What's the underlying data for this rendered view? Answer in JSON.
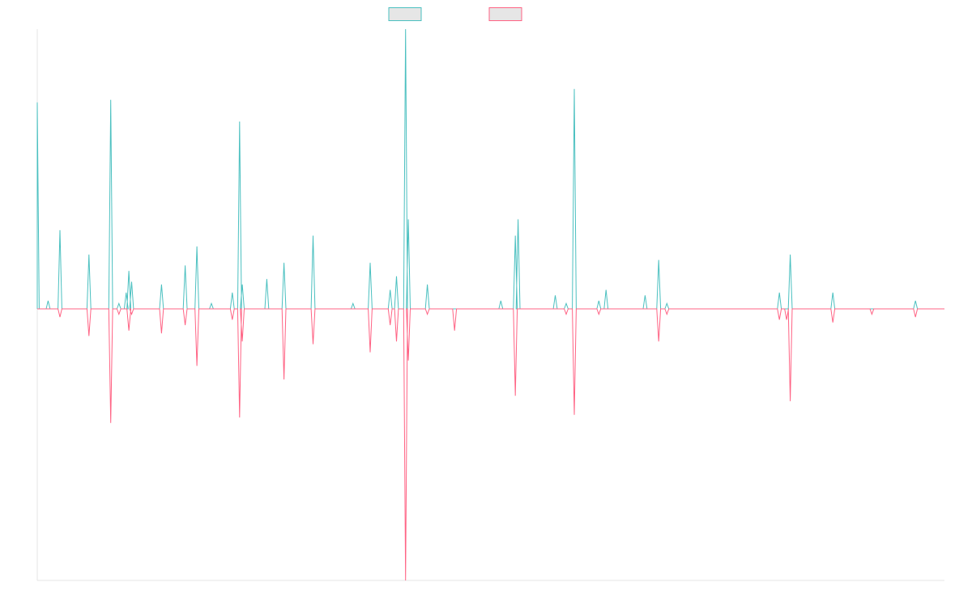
{
  "chart_data": {
    "type": "line",
    "title": "",
    "xlabel": "",
    "ylabel": "",
    "grid": false,
    "legend": {
      "placement": "top-center",
      "labels_visible": false
    },
    "x_domain": [
      0,
      1000
    ],
    "y_domain": [
      -1.0,
      1.03
    ],
    "series": [
      {
        "key": "positive",
        "color": "#4bc0c0",
        "fill": "rgba(75,192,192,0.0)",
        "direction": "up",
        "peaks": [
          {
            "x": 0,
            "v": 0.76
          },
          {
            "x": 12,
            "v": 0.03
          },
          {
            "x": 25,
            "v": 0.29
          },
          {
            "x": 57,
            "v": 0.2
          },
          {
            "x": 81,
            "v": 0.77
          },
          {
            "x": 90,
            "v": 0.02
          },
          {
            "x": 98,
            "v": 0.06
          },
          {
            "x": 101,
            "v": 0.14
          },
          {
            "x": 104,
            "v": 0.1
          },
          {
            "x": 137,
            "v": 0.09
          },
          {
            "x": 163,
            "v": 0.16
          },
          {
            "x": 176,
            "v": 0.23
          },
          {
            "x": 192,
            "v": 0.02
          },
          {
            "x": 215,
            "v": 0.06
          },
          {
            "x": 223,
            "v": 0.69
          },
          {
            "x": 226,
            "v": 0.09
          },
          {
            "x": 253,
            "v": 0.11
          },
          {
            "x": 272,
            "v": 0.17
          },
          {
            "x": 304,
            "v": 0.27
          },
          {
            "x": 348,
            "v": 0.02
          },
          {
            "x": 367,
            "v": 0.17
          },
          {
            "x": 389,
            "v": 0.07
          },
          {
            "x": 396,
            "v": 0.12
          },
          {
            "x": 406,
            "v": 1.03
          },
          {
            "x": 409,
            "v": 0.33
          },
          {
            "x": 430,
            "v": 0.09
          },
          {
            "x": 511,
            "v": 0.03
          },
          {
            "x": 527,
            "v": 0.27
          },
          {
            "x": 530,
            "v": 0.33
          },
          {
            "x": 571,
            "v": 0.05
          },
          {
            "x": 583,
            "v": 0.02
          },
          {
            "x": 592,
            "v": 0.81
          },
          {
            "x": 619,
            "v": 0.03
          },
          {
            "x": 627,
            "v": 0.07
          },
          {
            "x": 670,
            "v": 0.05
          },
          {
            "x": 685,
            "v": 0.18
          },
          {
            "x": 694,
            "v": 0.02
          },
          {
            "x": 818,
            "v": 0.06
          },
          {
            "x": 830,
            "v": 0.2
          },
          {
            "x": 877,
            "v": 0.06
          },
          {
            "x": 968,
            "v": 0.03
          }
        ]
      },
      {
        "key": "negative",
        "color": "#ff6384",
        "fill": "rgba(255,99,132,0.0)",
        "direction": "down",
        "peaks": [
          {
            "x": 25,
            "v": 0.03
          },
          {
            "x": 57,
            "v": 0.1
          },
          {
            "x": 81,
            "v": 0.42
          },
          {
            "x": 90,
            "v": 0.02
          },
          {
            "x": 101,
            "v": 0.08
          },
          {
            "x": 104,
            "v": 0.02
          },
          {
            "x": 137,
            "v": 0.09
          },
          {
            "x": 163,
            "v": 0.06
          },
          {
            "x": 176,
            "v": 0.21
          },
          {
            "x": 215,
            "v": 0.04
          },
          {
            "x": 223,
            "v": 0.4
          },
          {
            "x": 226,
            "v": 0.12
          },
          {
            "x": 272,
            "v": 0.26
          },
          {
            "x": 304,
            "v": 0.13
          },
          {
            "x": 367,
            "v": 0.16
          },
          {
            "x": 389,
            "v": 0.06
          },
          {
            "x": 396,
            "v": 0.12
          },
          {
            "x": 406,
            "v": 1.0
          },
          {
            "x": 409,
            "v": 0.19
          },
          {
            "x": 430,
            "v": 0.02
          },
          {
            "x": 460,
            "v": 0.08
          },
          {
            "x": 527,
            "v": 0.32
          },
          {
            "x": 583,
            "v": 0.02
          },
          {
            "x": 592,
            "v": 0.39
          },
          {
            "x": 619,
            "v": 0.02
          },
          {
            "x": 685,
            "v": 0.12
          },
          {
            "x": 694,
            "v": 0.02
          },
          {
            "x": 818,
            "v": 0.04
          },
          {
            "x": 826,
            "v": 0.04
          },
          {
            "x": 830,
            "v": 0.34
          },
          {
            "x": 877,
            "v": 0.05
          },
          {
            "x": 920,
            "v": 0.02
          },
          {
            "x": 968,
            "v": 0.03
          }
        ]
      }
    ]
  }
}
